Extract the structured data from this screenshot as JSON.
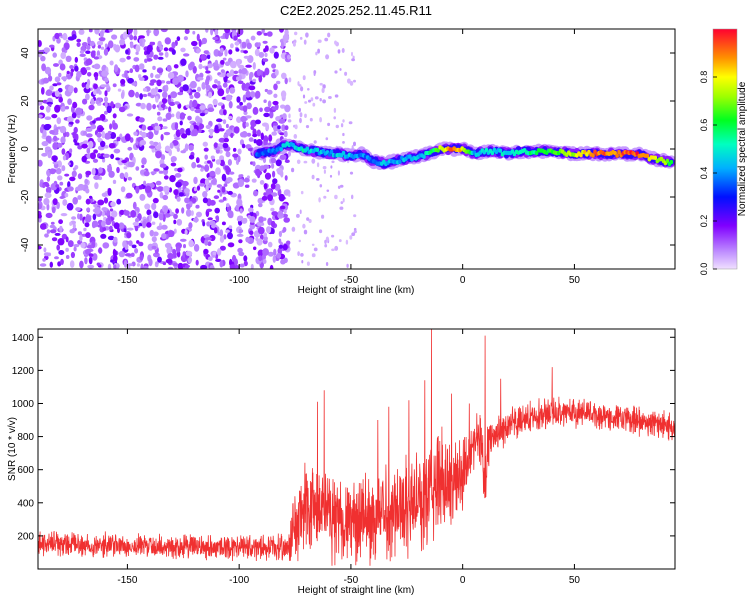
{
  "figure": {
    "title": "C2E2.2025.252.11.45.R11"
  },
  "colors": {
    "snr_line": "#f03030",
    "axis": "#000000",
    "spectrum_stops": [
      "#e8c8ff",
      "#8000ff",
      "#0000ff",
      "#00c0ff",
      "#00ff60",
      "#ffff00",
      "#ff8000",
      "#ff0000"
    ]
  },
  "chart_data": [
    {
      "id": "spectrogram",
      "type": "heatmap",
      "xlabel": "Height of straight line (km)",
      "ylabel": "Frequency (Hz)",
      "xlim": [
        -190,
        95
      ],
      "ylim": [
        -50,
        50
      ],
      "x_ticks": [
        -150,
        -100,
        -50,
        0,
        50
      ],
      "y_ticks": [
        -40,
        -20,
        0,
        20,
        40
      ],
      "colorbar": {
        "label": "Normalized spectral amplitude",
        "range": [
          0,
          1
        ],
        "ticks": [
          "0.0",
          "0.2",
          "0.4",
          "0.6",
          "0.8"
        ],
        "tick_values": [
          0,
          0.2,
          0.4,
          0.6,
          0.8
        ]
      },
      "noise_region_x": [
        -190,
        -78
      ],
      "ridge": {
        "description_points": [
          [
            -92,
            -2,
            0.35
          ],
          [
            -85,
            -1,
            0.35
          ],
          [
            -78,
            2,
            0.45
          ],
          [
            -72,
            0,
            0.5
          ],
          [
            -65,
            -1,
            0.45
          ],
          [
            -60,
            -2,
            0.4
          ],
          [
            -55,
            -2,
            0.45
          ],
          [
            -50,
            -3,
            0.45
          ],
          [
            -45,
            -2,
            0.4
          ],
          [
            -40,
            -5,
            0.35
          ],
          [
            -35,
            -6,
            0.45
          ],
          [
            -30,
            -5,
            0.4
          ],
          [
            -25,
            -4,
            0.45
          ],
          [
            -20,
            -3,
            0.45
          ],
          [
            -15,
            -2,
            0.5
          ],
          [
            -10,
            0,
            0.75
          ],
          [
            -5,
            0,
            0.95
          ],
          [
            0,
            0,
            0.8
          ],
          [
            5,
            -2,
            0.45
          ],
          [
            10,
            -1,
            0.5
          ],
          [
            15,
            -1,
            0.45
          ],
          [
            20,
            -2,
            0.5
          ],
          [
            25,
            -1,
            0.5
          ],
          [
            30,
            -1,
            0.55
          ],
          [
            40,
            -1,
            0.65
          ],
          [
            50,
            -2,
            0.75
          ],
          [
            60,
            -2,
            0.9
          ],
          [
            70,
            -2,
            0.9
          ],
          [
            78,
            -2,
            0.95
          ],
          [
            85,
            -4,
            0.8
          ],
          [
            90,
            -5,
            0.7
          ],
          [
            94,
            -6,
            0.6
          ]
        ]
      }
    },
    {
      "id": "snr",
      "type": "line",
      "xlabel": "Height of straight line (km)",
      "ylabel": "SNR (10 * v/v)",
      "xlim": [
        -190,
        95
      ],
      "ylim": [
        0,
        1450
      ],
      "x_ticks": [
        -150,
        -100,
        -50,
        0,
        50
      ],
      "y_ticks": [
        200,
        400,
        600,
        800,
        1000,
        1200,
        1400
      ],
      "envelope": {
        "x": [
          -190,
          -150,
          -100,
          -78,
          -75,
          -70,
          -60,
          -50,
          -40,
          -30,
          -20,
          -15,
          -10,
          -5,
          0,
          5,
          9,
          10,
          11,
          15,
          20,
          25,
          30,
          40,
          50,
          60,
          70,
          80,
          90,
          95
        ],
        "mean": [
          150,
          140,
          130,
          130,
          250,
          350,
          330,
          280,
          300,
          380,
          400,
          450,
          550,
          500,
          600,
          780,
          750,
          400,
          750,
          820,
          860,
          880,
          920,
          950,
          950,
          930,
          910,
          890,
          870,
          860
        ],
        "spread": [
          90,
          90,
          90,
          90,
          300,
          380,
          320,
          300,
          340,
          380,
          360,
          380,
          400,
          350,
          300,
          200,
          200,
          200,
          180,
          150,
          130,
          120,
          110,
          110,
          110,
          100,
          100,
          100,
          100,
          100
        ]
      },
      "peaks": [
        [
          -65,
          1010
        ],
        [
          -62,
          1080
        ],
        [
          -38,
          900
        ],
        [
          -33,
          980
        ],
        [
          -24,
          1020
        ],
        [
          -17,
          1140
        ],
        [
          -14,
          1450
        ],
        [
          -5,
          1060
        ],
        [
          3,
          1000
        ],
        [
          10,
          1410
        ],
        [
          17,
          1150
        ],
        [
          40,
          1220
        ]
      ]
    }
  ]
}
